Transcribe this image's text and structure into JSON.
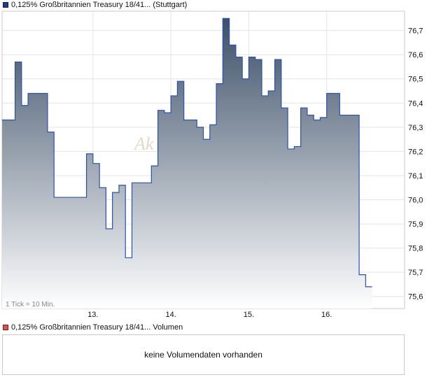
{
  "legend": {
    "price": "0,125% Großbritannien Treasury 18/41... (Stuttgart)",
    "volume": "0,125% Großbritannien Treasury 18/41... Volumen"
  },
  "tick_note": "1 Tick = 10 Min.",
  "watermark": "Ak",
  "volume_message": "keine Volumendaten vorhanden",
  "colors": {
    "line": "#2b50b4",
    "fill_top": "#3d5068",
    "fill_bottom": "#ffffff",
    "grid": "#e4e4e4"
  },
  "chart_data": {
    "type": "area",
    "ylim": [
      75.55,
      76.78
    ],
    "yticks": [
      "75,6",
      "75,7",
      "75,8",
      "75,9",
      "76,0",
      "76,1",
      "76,2",
      "76,3",
      "76,4",
      "76,5",
      "76,6",
      "76,7"
    ],
    "xlabels": [
      {
        "label": "13.",
        "x": 14
      },
      {
        "label": "14.",
        "x": 26
      },
      {
        "label": "15.",
        "x": 38
      },
      {
        "label": "16.",
        "x": 50
      }
    ],
    "x_count": 62,
    "values": [
      76.33,
      76.33,
      76.57,
      76.39,
      76.44,
      76.44,
      76.44,
      76.28,
      76.01,
      76.01,
      76.01,
      76.01,
      76.01,
      76.19,
      76.15,
      76.05,
      75.88,
      76.03,
      76.06,
      75.76,
      76.07,
      76.07,
      76.07,
      76.14,
      76.37,
      76.36,
      76.43,
      76.49,
      76.33,
      76.33,
      76.3,
      76.25,
      76.31,
      76.48,
      76.75,
      76.64,
      76.59,
      76.5,
      76.59,
      76.58,
      76.43,
      76.45,
      76.58,
      76.38,
      76.21,
      76.22,
      76.38,
      76.35,
      76.33,
      76.34,
      76.44,
      76.44,
      76.35,
      76.35,
      76.35,
      75.69,
      75.64
    ]
  }
}
